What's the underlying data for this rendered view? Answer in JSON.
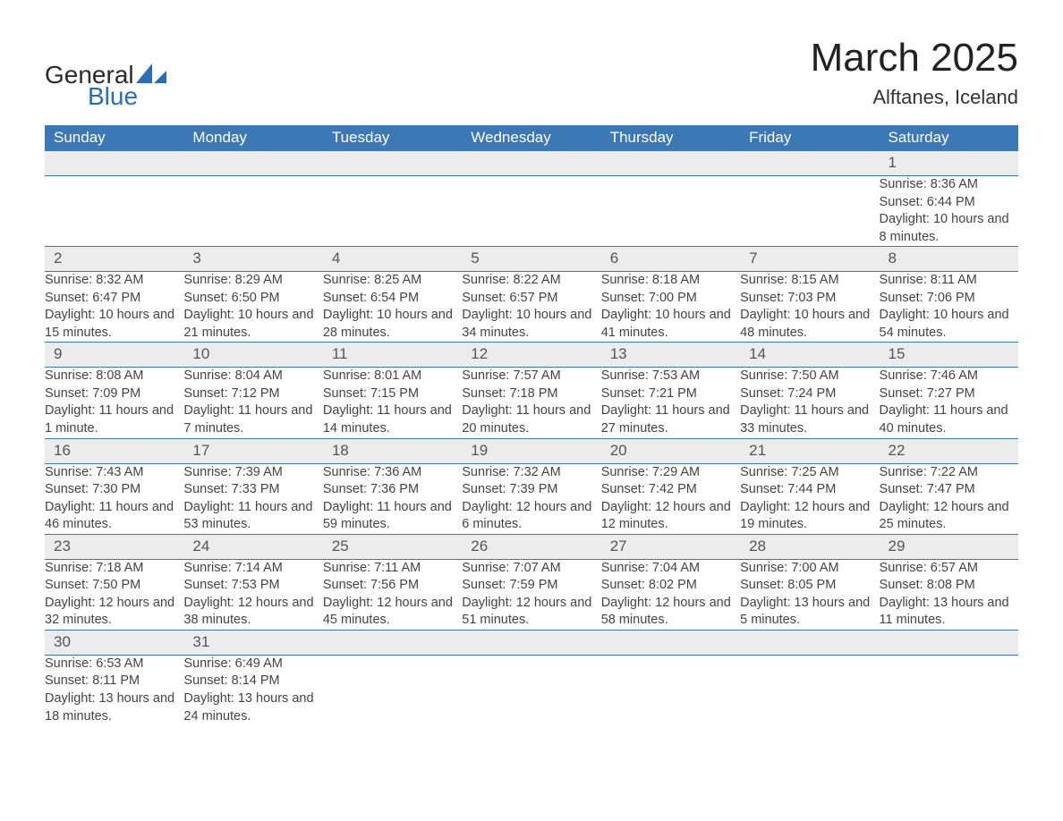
{
  "brand": {
    "general": "General",
    "blue": "Blue"
  },
  "title": "March 2025",
  "location": "Alftanes, Iceland",
  "weekday_headers": [
    "Sunday",
    "Monday",
    "Tuesday",
    "Wednesday",
    "Thursday",
    "Friday",
    "Saturday"
  ],
  "colors": {
    "header_bg": "#3b78b5",
    "header_text": "#ffffff",
    "rule": "#3b78b5",
    "daynum_bg": "#ececec",
    "daynum_text": "#555555",
    "body_text": "#444444",
    "brand_blue": "#2a6fb5",
    "brand_dark": "#2a2a2a",
    "page_bg": "#ffffff"
  },
  "weeks": [
    [
      null,
      null,
      null,
      null,
      null,
      null,
      {
        "n": "1",
        "sunrise": "Sunrise: 8:36 AM",
        "sunset": "Sunset: 6:44 PM",
        "daylight": "Daylight: 10 hours and 8 minutes."
      }
    ],
    [
      {
        "n": "2",
        "sunrise": "Sunrise: 8:32 AM",
        "sunset": "Sunset: 6:47 PM",
        "daylight": "Daylight: 10 hours and 15 minutes."
      },
      {
        "n": "3",
        "sunrise": "Sunrise: 8:29 AM",
        "sunset": "Sunset: 6:50 PM",
        "daylight": "Daylight: 10 hours and 21 minutes."
      },
      {
        "n": "4",
        "sunrise": "Sunrise: 8:25 AM",
        "sunset": "Sunset: 6:54 PM",
        "daylight": "Daylight: 10 hours and 28 minutes."
      },
      {
        "n": "5",
        "sunrise": "Sunrise: 8:22 AM",
        "sunset": "Sunset: 6:57 PM",
        "daylight": "Daylight: 10 hours and 34 minutes."
      },
      {
        "n": "6",
        "sunrise": "Sunrise: 8:18 AM",
        "sunset": "Sunset: 7:00 PM",
        "daylight": "Daylight: 10 hours and 41 minutes."
      },
      {
        "n": "7",
        "sunrise": "Sunrise: 8:15 AM",
        "sunset": "Sunset: 7:03 PM",
        "daylight": "Daylight: 10 hours and 48 minutes."
      },
      {
        "n": "8",
        "sunrise": "Sunrise: 8:11 AM",
        "sunset": "Sunset: 7:06 PM",
        "daylight": "Daylight: 10 hours and 54 minutes."
      }
    ],
    [
      {
        "n": "9",
        "sunrise": "Sunrise: 8:08 AM",
        "sunset": "Sunset: 7:09 PM",
        "daylight": "Daylight: 11 hours and 1 minute."
      },
      {
        "n": "10",
        "sunrise": "Sunrise: 8:04 AM",
        "sunset": "Sunset: 7:12 PM",
        "daylight": "Daylight: 11 hours and 7 minutes."
      },
      {
        "n": "11",
        "sunrise": "Sunrise: 8:01 AM",
        "sunset": "Sunset: 7:15 PM",
        "daylight": "Daylight: 11 hours and 14 minutes."
      },
      {
        "n": "12",
        "sunrise": "Sunrise: 7:57 AM",
        "sunset": "Sunset: 7:18 PM",
        "daylight": "Daylight: 11 hours and 20 minutes."
      },
      {
        "n": "13",
        "sunrise": "Sunrise: 7:53 AM",
        "sunset": "Sunset: 7:21 PM",
        "daylight": "Daylight: 11 hours and 27 minutes."
      },
      {
        "n": "14",
        "sunrise": "Sunrise: 7:50 AM",
        "sunset": "Sunset: 7:24 PM",
        "daylight": "Daylight: 11 hours and 33 minutes."
      },
      {
        "n": "15",
        "sunrise": "Sunrise: 7:46 AM",
        "sunset": "Sunset: 7:27 PM",
        "daylight": "Daylight: 11 hours and 40 minutes."
      }
    ],
    [
      {
        "n": "16",
        "sunrise": "Sunrise: 7:43 AM",
        "sunset": "Sunset: 7:30 PM",
        "daylight": "Daylight: 11 hours and 46 minutes."
      },
      {
        "n": "17",
        "sunrise": "Sunrise: 7:39 AM",
        "sunset": "Sunset: 7:33 PM",
        "daylight": "Daylight: 11 hours and 53 minutes."
      },
      {
        "n": "18",
        "sunrise": "Sunrise: 7:36 AM",
        "sunset": "Sunset: 7:36 PM",
        "daylight": "Daylight: 11 hours and 59 minutes."
      },
      {
        "n": "19",
        "sunrise": "Sunrise: 7:32 AM",
        "sunset": "Sunset: 7:39 PM",
        "daylight": "Daylight: 12 hours and 6 minutes."
      },
      {
        "n": "20",
        "sunrise": "Sunrise: 7:29 AM",
        "sunset": "Sunset: 7:42 PM",
        "daylight": "Daylight: 12 hours and 12 minutes."
      },
      {
        "n": "21",
        "sunrise": "Sunrise: 7:25 AM",
        "sunset": "Sunset: 7:44 PM",
        "daylight": "Daylight: 12 hours and 19 minutes."
      },
      {
        "n": "22",
        "sunrise": "Sunrise: 7:22 AM",
        "sunset": "Sunset: 7:47 PM",
        "daylight": "Daylight: 12 hours and 25 minutes."
      }
    ],
    [
      {
        "n": "23",
        "sunrise": "Sunrise: 7:18 AM",
        "sunset": "Sunset: 7:50 PM",
        "daylight": "Daylight: 12 hours and 32 minutes."
      },
      {
        "n": "24",
        "sunrise": "Sunrise: 7:14 AM",
        "sunset": "Sunset: 7:53 PM",
        "daylight": "Daylight: 12 hours and 38 minutes."
      },
      {
        "n": "25",
        "sunrise": "Sunrise: 7:11 AM",
        "sunset": "Sunset: 7:56 PM",
        "daylight": "Daylight: 12 hours and 45 minutes."
      },
      {
        "n": "26",
        "sunrise": "Sunrise: 7:07 AM",
        "sunset": "Sunset: 7:59 PM",
        "daylight": "Daylight: 12 hours and 51 minutes."
      },
      {
        "n": "27",
        "sunrise": "Sunrise: 7:04 AM",
        "sunset": "Sunset: 8:02 PM",
        "daylight": "Daylight: 12 hours and 58 minutes."
      },
      {
        "n": "28",
        "sunrise": "Sunrise: 7:00 AM",
        "sunset": "Sunset: 8:05 PM",
        "daylight": "Daylight: 13 hours and 5 minutes."
      },
      {
        "n": "29",
        "sunrise": "Sunrise: 6:57 AM",
        "sunset": "Sunset: 8:08 PM",
        "daylight": "Daylight: 13 hours and 11 minutes."
      }
    ],
    [
      {
        "n": "30",
        "sunrise": "Sunrise: 6:53 AM",
        "sunset": "Sunset: 8:11 PM",
        "daylight": "Daylight: 13 hours and 18 minutes."
      },
      {
        "n": "31",
        "sunrise": "Sunrise: 6:49 AM",
        "sunset": "Sunset: 8:14 PM",
        "daylight": "Daylight: 13 hours and 24 minutes."
      },
      null,
      null,
      null,
      null,
      null
    ]
  ]
}
